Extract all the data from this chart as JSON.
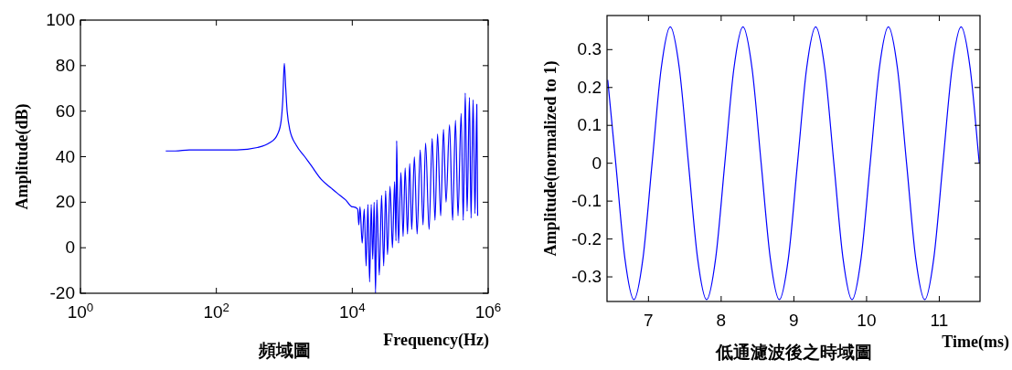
{
  "chart_data": [
    {
      "type": "line",
      "title": "頻域圖",
      "xlabel": "Frequency(Hz)",
      "ylabel": "Amplitude(dB)",
      "log": "x",
      "xlim": [
        1,
        1000000
      ],
      "xticks": [
        {
          "value": 1,
          "label": "10$^{0}$"
        },
        {
          "value": 100,
          "label": "10$^{2}$"
        },
        {
          "value": 10000,
          "label": "10$^{4}$"
        },
        {
          "value": 1000000,
          "label": "10$^{6}$"
        }
      ],
      "ylim": [
        -20,
        100
      ],
      "yticks": [
        -20,
        0,
        20,
        40,
        60,
        80,
        100
      ],
      "series": [
        {
          "color": "#0000ff",
          "x": [
            18,
            25,
            40,
            100,
            200,
            400,
            600,
            800,
            900,
            950,
            1000,
            1050,
            1100,
            1200,
            1500,
            2000,
            2500,
            3500,
            5000,
            6000,
            8000,
            10000,
            12000,
            12500,
            13000,
            14000,
            15000,
            16000,
            17000,
            18000,
            19000,
            20000,
            21000,
            22000,
            23000,
            25000,
            27000,
            29000,
            31000,
            33000,
            36000,
            39000,
            42000,
            44000,
            45000,
            46000,
            48000,
            52000,
            56000,
            60000,
            65000,
            70000,
            75000,
            82000,
            90000,
            100000,
            110000,
            120000,
            135000,
            150000,
            165000,
            180000,
            200000,
            220000,
            240000,
            270000,
            300000,
            330000,
            360000,
            400000,
            430000,
            460000,
            490000,
            530000,
            560000,
            600000,
            640000,
            680000,
            700000
          ],
          "values": [
            42.5,
            42.5,
            43,
            43,
            43,
            44,
            46,
            50,
            56,
            65,
            81,
            70,
            60,
            52,
            45,
            40,
            36,
            30,
            26,
            24,
            21,
            18,
            17,
            10,
            18,
            2,
            17,
            -8,
            19,
            -15,
            19,
            -5,
            20,
            -20,
            21,
            -12,
            23,
            -8,
            25,
            -3,
            27,
            0,
            29,
            3,
            47,
            30,
            2,
            33,
            5,
            35,
            6,
            37,
            8,
            40,
            6,
            43,
            10,
            46,
            8,
            48,
            12,
            50,
            14,
            52,
            20,
            54,
            12,
            56,
            14,
            59,
            12,
            68,
            16,
            66,
            13,
            65,
            15,
            63,
            14
          ]
        }
      ]
    },
    {
      "type": "line",
      "title": "低通濾波後之時域圖",
      "xlabel": "Time(ms)",
      "ylabel": "Amplitude(normalized to 1)",
      "xlim": [
        6.43,
        11.56
      ],
      "xticks": [
        7,
        8,
        9,
        10,
        11
      ],
      "ylim": [
        -0.365,
        0.39
      ],
      "yticks": [
        -0.3,
        -0.2,
        -0.1,
        0,
        0.1,
        0.2,
        0.3
      ],
      "series": [
        {
          "color": "#0000ff",
          "x": [
            6.44,
            6.55,
            6.675,
            6.8,
            6.925,
            7.05,
            7.175,
            7.3,
            7.425,
            7.55,
            7.675,
            7.8,
            7.925,
            8.05,
            8.175,
            8.3,
            8.425,
            8.55,
            8.675,
            8.8,
            8.925,
            9.05,
            9.175,
            9.3,
            9.425,
            9.55,
            9.675,
            9.8,
            9.925,
            10.05,
            10.175,
            10.3,
            10.425,
            10.55,
            10.675,
            10.8,
            10.925,
            11.05,
            11.175,
            11.3,
            11.425,
            11.55
          ],
          "values": [
            0.22,
            0,
            -0.25,
            -0.36,
            -0.25,
            0,
            0.25,
            0.36,
            0.25,
            0,
            -0.25,
            -0.36,
            -0.25,
            0,
            0.25,
            0.36,
            0.25,
            0,
            -0.25,
            -0.36,
            -0.25,
            0,
            0.25,
            0.36,
            0.25,
            0,
            -0.25,
            -0.36,
            -0.25,
            0,
            0.25,
            0.36,
            0.25,
            0,
            -0.25,
            -0.36,
            -0.25,
            0,
            0.25,
            0.36,
            0.25,
            0
          ]
        }
      ]
    }
  ]
}
